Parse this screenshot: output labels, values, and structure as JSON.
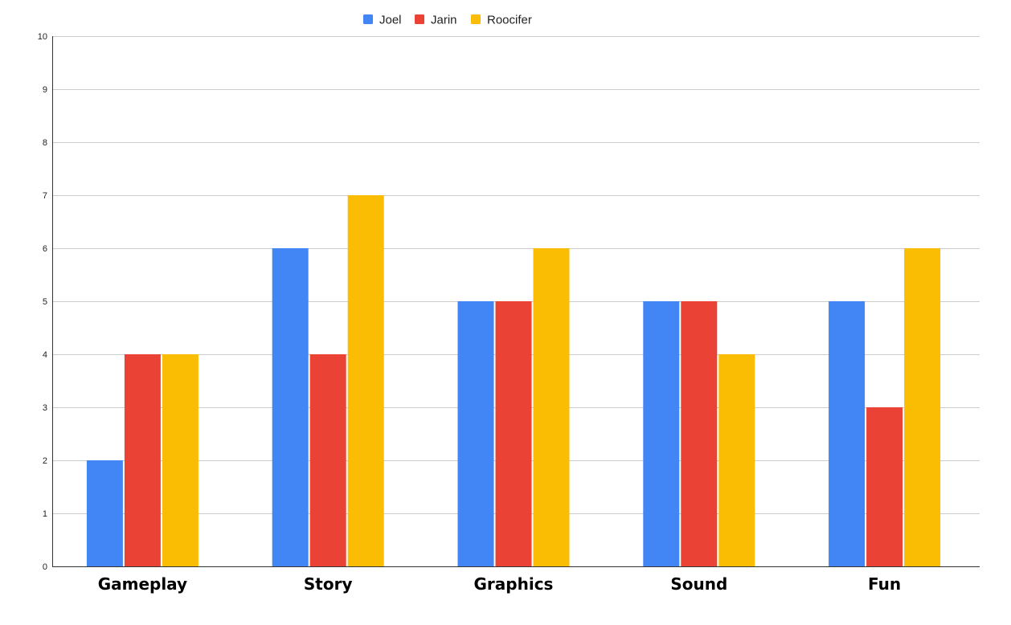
{
  "chart_data": {
    "type": "bar",
    "categories": [
      "Gameplay",
      "Story",
      "Graphics",
      "Sound",
      "Fun"
    ],
    "series": [
      {
        "name": "Joel",
        "color": "#4285F4",
        "values": [
          2,
          6,
          5,
          5,
          5
        ]
      },
      {
        "name": "Jarin",
        "color": "#EA4335",
        "values": [
          4,
          4,
          5,
          5,
          3
        ]
      },
      {
        "name": "Roocifer",
        "color": "#FBBC04",
        "values": [
          4,
          7,
          6,
          4,
          6
        ]
      }
    ],
    "title": "",
    "xlabel": "",
    "ylabel": "",
    "ylim": [
      0,
      10
    ],
    "yticks": [
      "0",
      "1",
      "2",
      "3",
      "4",
      "5",
      "6",
      "7",
      "8",
      "9",
      "10"
    ],
    "grid": true,
    "legend_position": "top"
  }
}
